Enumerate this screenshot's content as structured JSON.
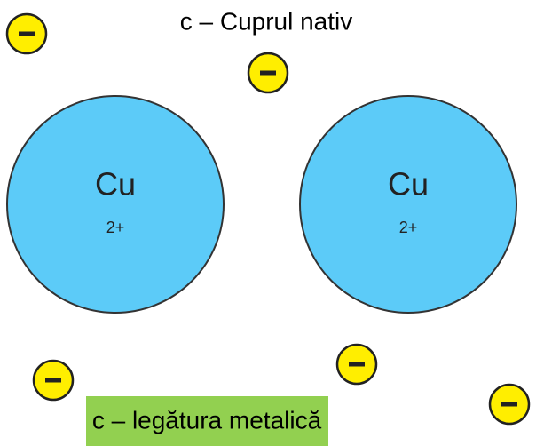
{
  "title": "c – Cuprul nativ",
  "ions": [
    {
      "symbol": "Cu",
      "charge": "2+"
    },
    {
      "symbol": "Cu",
      "charge": "2+"
    }
  ],
  "caption": "c – legătura metalică"
}
